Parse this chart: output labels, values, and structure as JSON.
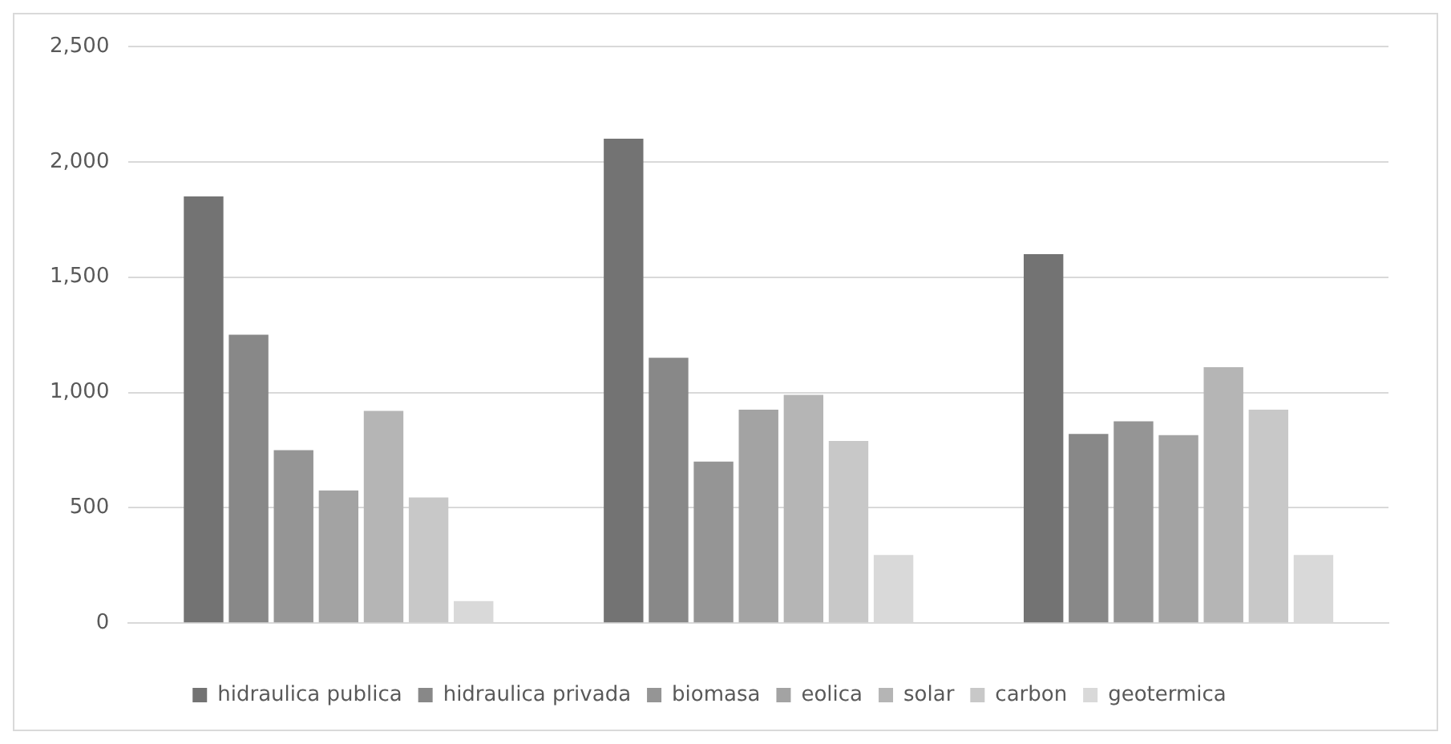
{
  "chart_data": {
    "type": "bar",
    "categories": [
      null,
      null,
      null
    ],
    "series": [
      {
        "name": "hidraulica publica",
        "color": "#737373",
        "values": [
          1850,
          2100,
          1600
        ]
      },
      {
        "name": "hidraulica privada",
        "color": "#888888",
        "values": [
          1250,
          1150,
          820
        ]
      },
      {
        "name": "biomasa",
        "color": "#959595",
        "values": [
          750,
          700,
          875
        ]
      },
      {
        "name": "eolica",
        "color": "#a3a3a3",
        "values": [
          575,
          925,
          815
        ]
      },
      {
        "name": "solar",
        "color": "#b5b5b5",
        "values": [
          920,
          990,
          1110
        ]
      },
      {
        "name": "carbon",
        "color": "#c8c8c8",
        "values": [
          545,
          790,
          925
        ]
      },
      {
        "name": "geotermica",
        "color": "#d9d9d9",
        "values": [
          95,
          295,
          295
        ]
      }
    ],
    "ylim": [
      0,
      2500
    ],
    "yticks": [
      0,
      500,
      {
        "value": 1000,
        "label": "1,000"
      },
      {
        "value": 1500,
        "label": "1,500"
      },
      {
        "value": 2000,
        "label": "2,000"
      },
      {
        "value": 2500,
        "label": "2,500"
      }
    ],
    "grid": "y",
    "legend": "bottom"
  }
}
